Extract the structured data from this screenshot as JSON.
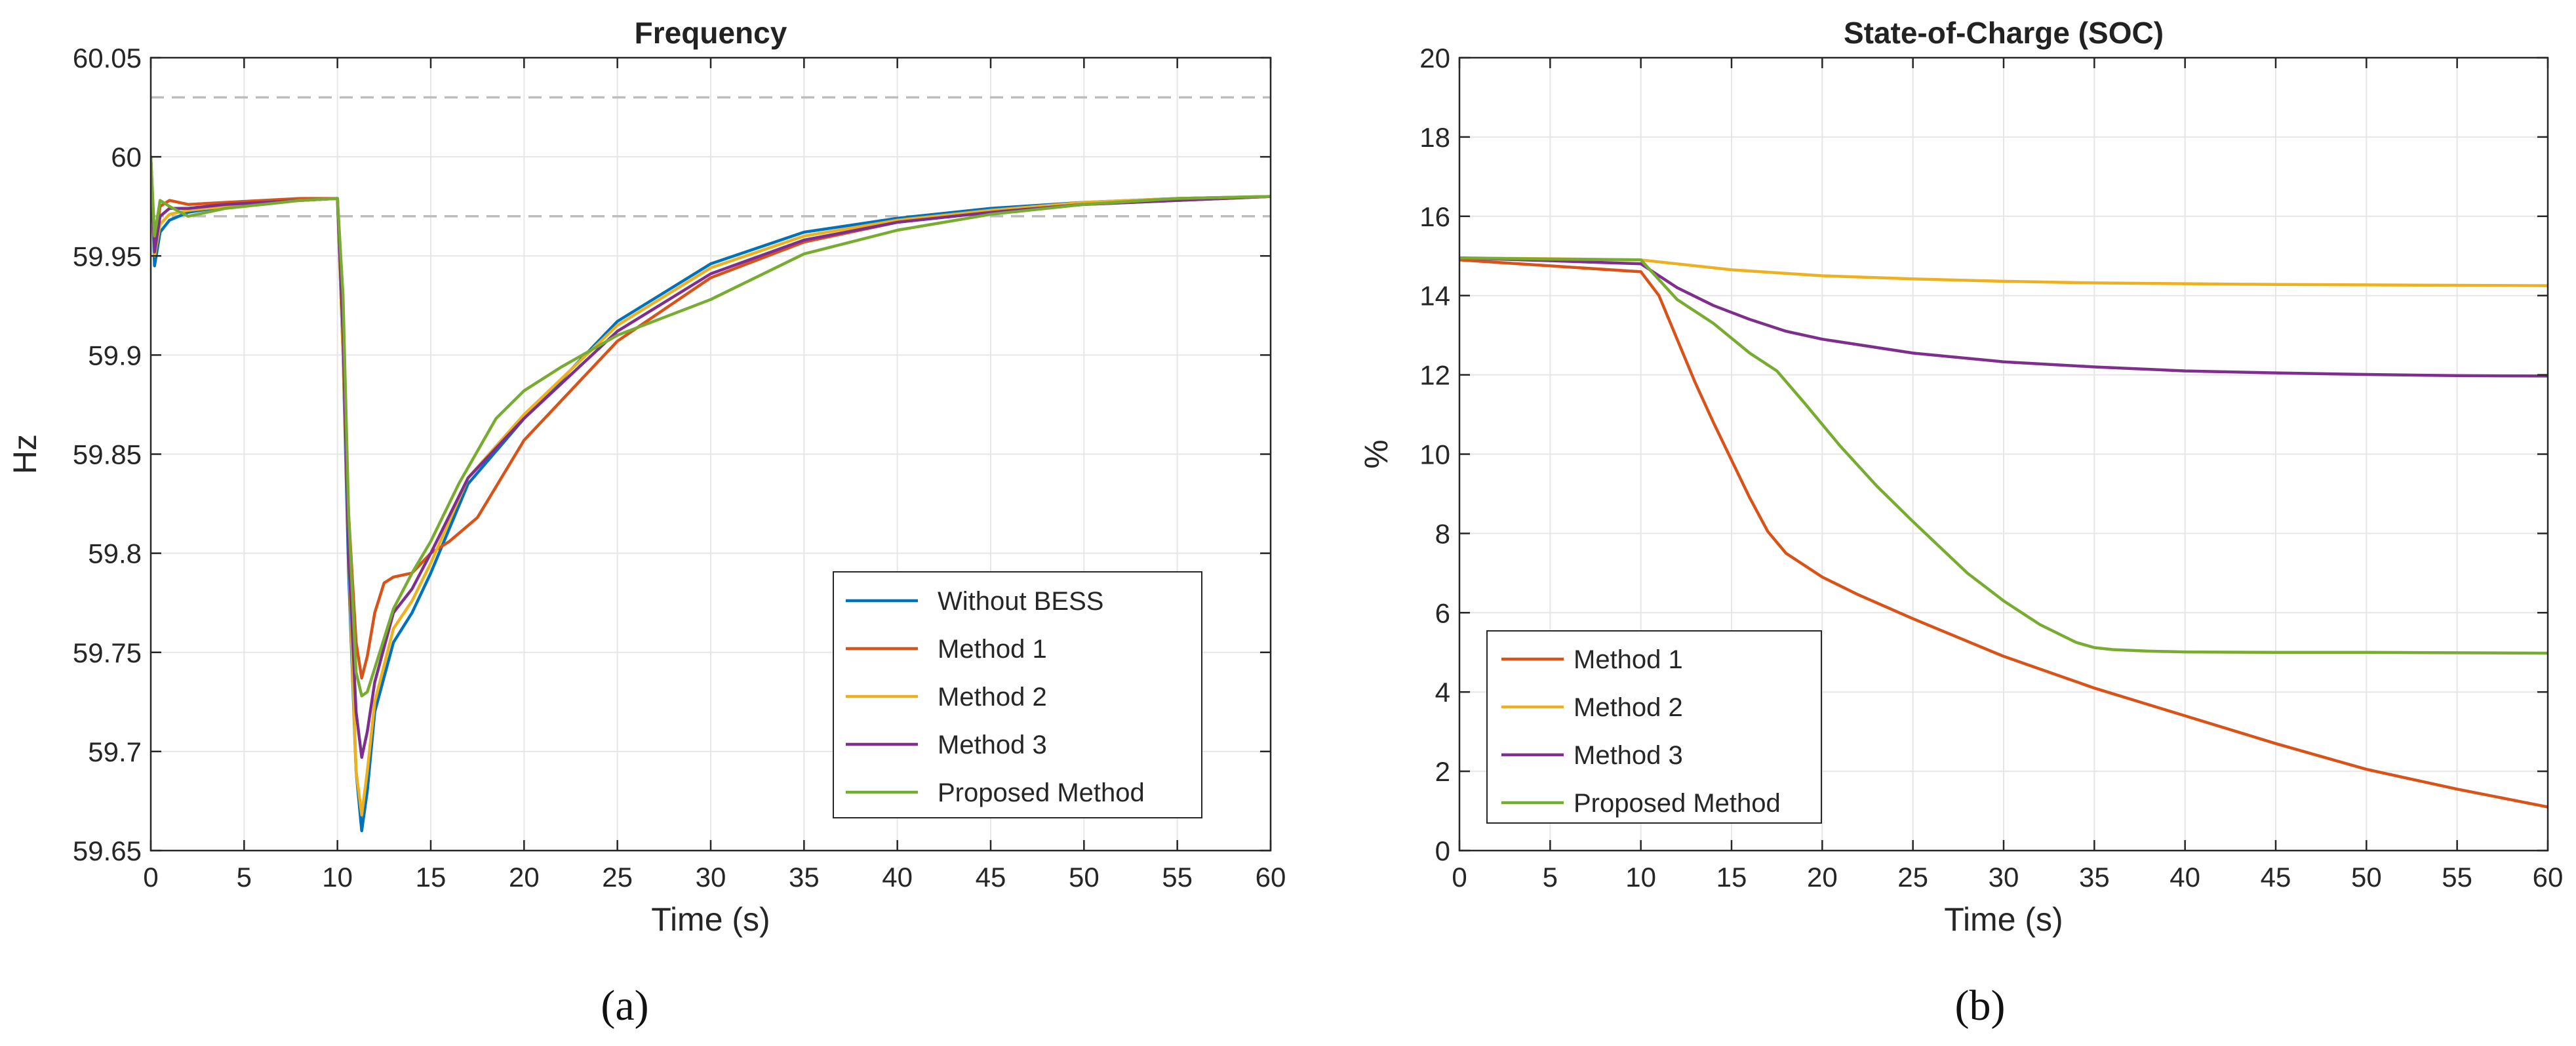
{
  "chart_data": [
    {
      "type": "line",
      "title": "Frequency",
      "xlabel": "Time (s)",
      "ylabel": "Hz",
      "xlim": [
        0,
        60
      ],
      "ylim": [
        59.65,
        60.05
      ],
      "xticks": [
        0,
        5,
        10,
        15,
        20,
        25,
        30,
        35,
        40,
        45,
        50,
        55,
        60
      ],
      "yticks": [
        59.65,
        59.7,
        59.75,
        59.8,
        59.85,
        59.9,
        59.95,
        60,
        60.05
      ],
      "xtick_labels": [
        "0",
        "5",
        "10",
        "15",
        "20",
        "25",
        "30",
        "35",
        "40",
        "45",
        "50",
        "55",
        "60"
      ],
      "ytick_labels": [
        "59.65",
        "59.7",
        "59.75",
        "59.8",
        "59.85",
        "59.9",
        "59.95",
        "60",
        "60.05"
      ],
      "grid": true,
      "legend_position": "bottom-right",
      "caption": "(a)",
      "reference_lines": [
        {
          "y": 60.03,
          "style": "dashed",
          "color": "#bdbdbd"
        },
        {
          "y": 59.97,
          "style": "dashed",
          "color": "#bdbdbd"
        }
      ],
      "series": [
        {
          "name": "Without BESS",
          "color": "#0072BD",
          "x": [
            0,
            0.2,
            0.5,
            1,
            2,
            4,
            6,
            8,
            10,
            10.3,
            10.6,
            11,
            11.3,
            11.6,
            12,
            13,
            14,
            15,
            17,
            20,
            25,
            30,
            35,
            40,
            45,
            50,
            55,
            60
          ],
          "y": [
            60.0,
            59.945,
            59.962,
            59.968,
            59.972,
            59.975,
            59.977,
            59.978,
            59.979,
            59.9,
            59.79,
            59.69,
            59.66,
            59.68,
            59.72,
            59.755,
            59.77,
            59.79,
            59.835,
            59.868,
            59.917,
            59.946,
            59.962,
            59.969,
            59.974,
            59.977,
            59.979,
            59.98
          ]
        },
        {
          "name": "Method 1",
          "color": "#D95319",
          "x": [
            0,
            0.2,
            0.5,
            1,
            2,
            4,
            6,
            8,
            10,
            10.3,
            10.6,
            11,
            11.3,
            11.6,
            12,
            12.5,
            13,
            14,
            15,
            16,
            17.5,
            20,
            25,
            30,
            35,
            40,
            45,
            50,
            55,
            60
          ],
          "y": [
            60.0,
            59.955,
            59.975,
            59.978,
            59.976,
            59.977,
            59.978,
            59.979,
            59.979,
            59.91,
            59.82,
            59.755,
            59.737,
            59.748,
            59.77,
            59.785,
            59.788,
            59.79,
            59.8,
            59.806,
            59.818,
            59.857,
            59.907,
            59.939,
            59.957,
            59.967,
            59.972,
            59.976,
            59.978,
            59.98
          ]
        },
        {
          "name": "Method 2",
          "color": "#EDB120",
          "x": [
            0,
            0.2,
            0.5,
            1,
            2,
            4,
            6,
            8,
            10,
            10.3,
            10.6,
            11,
            11.3,
            11.6,
            12,
            13,
            14,
            15,
            17,
            20,
            25,
            30,
            35,
            40,
            45,
            50,
            55,
            60
          ],
          "y": [
            60.0,
            59.95,
            59.966,
            59.971,
            59.973,
            59.975,
            59.977,
            59.978,
            59.979,
            59.9,
            59.8,
            59.69,
            59.668,
            59.69,
            59.725,
            59.762,
            59.776,
            59.795,
            59.838,
            59.87,
            59.915,
            59.944,
            59.96,
            59.968,
            59.973,
            59.977,
            59.979,
            59.98
          ]
        },
        {
          "name": "Method 3",
          "color": "#7E2F8E",
          "x": [
            0,
            0.2,
            0.5,
            1,
            2,
            4,
            6,
            8,
            10,
            10.3,
            10.6,
            11,
            11.3,
            11.6,
            12,
            13,
            14,
            15,
            17,
            20,
            25,
            30,
            35,
            40,
            45,
            50,
            55,
            60
          ],
          "y": [
            60.0,
            59.952,
            59.97,
            59.974,
            59.974,
            59.976,
            59.977,
            59.978,
            59.979,
            59.91,
            59.8,
            59.72,
            59.697,
            59.71,
            59.735,
            59.77,
            59.782,
            59.8,
            59.838,
            59.868,
            59.912,
            59.941,
            59.958,
            59.967,
            59.972,
            59.976,
            59.978,
            59.98
          ]
        },
        {
          "name": "Proposed Method",
          "color": "#77AC30",
          "x": [
            0,
            0.2,
            0.5,
            1,
            2,
            3,
            4,
            6,
            8,
            10,
            10.3,
            10.6,
            11,
            11.3,
            11.6,
            12,
            13,
            14,
            15,
            16.5,
            18.5,
            20,
            22,
            25,
            30,
            35,
            40,
            45,
            50,
            55,
            60
          ],
          "y": [
            60.0,
            59.96,
            59.978,
            59.975,
            59.97,
            59.972,
            59.974,
            59.976,
            59.978,
            59.979,
            59.93,
            59.82,
            59.74,
            59.728,
            59.73,
            59.742,
            59.772,
            59.79,
            59.806,
            59.835,
            59.868,
            59.882,
            59.894,
            59.91,
            59.928,
            59.951,
            59.963,
            59.971,
            59.976,
            59.979,
            59.98
          ]
        }
      ]
    },
    {
      "type": "line",
      "title": "State-of-Charge (SOC)",
      "xlabel": "Time (s)",
      "ylabel": "%",
      "xlim": [
        0,
        60
      ],
      "ylim": [
        0,
        20
      ],
      "xticks": [
        0,
        5,
        10,
        15,
        20,
        25,
        30,
        35,
        40,
        45,
        50,
        55,
        60
      ],
      "yticks": [
        0,
        2,
        4,
        6,
        8,
        10,
        12,
        14,
        16,
        18,
        20
      ],
      "xtick_labels": [
        "0",
        "5",
        "10",
        "15",
        "20",
        "25",
        "30",
        "35",
        "40",
        "45",
        "50",
        "55",
        "60"
      ],
      "ytick_labels": [
        "0",
        "2",
        "4",
        "6",
        "8",
        "10",
        "12",
        "14",
        "16",
        "18",
        "20"
      ],
      "grid": true,
      "legend_position": "bottom-left",
      "caption": "(b)",
      "series": [
        {
          "name": "Method 1",
          "color": "#D95319",
          "x": [
            0,
            5,
            10,
            11,
            12,
            13,
            14,
            15,
            16,
            17,
            18,
            19,
            20,
            22,
            25,
            30,
            35,
            40,
            45,
            50,
            55,
            60
          ],
          "y": [
            14.9,
            14.75,
            14.6,
            14.0,
            12.9,
            11.8,
            10.8,
            9.85,
            8.9,
            8.05,
            7.5,
            7.2,
            6.9,
            6.45,
            5.85,
            4.9,
            4.1,
            3.4,
            2.7,
            2.05,
            1.55,
            1.1
          ]
        },
        {
          "name": "Method 2",
          "color": "#EDB120",
          "x": [
            0,
            5,
            10,
            12,
            15,
            20,
            25,
            30,
            35,
            40,
            45,
            50,
            55,
            60
          ],
          "y": [
            14.95,
            14.93,
            14.9,
            14.8,
            14.65,
            14.5,
            14.42,
            14.36,
            14.32,
            14.3,
            14.28,
            14.27,
            14.26,
            14.25
          ]
        },
        {
          "name": "Method 3",
          "color": "#7E2F8E",
          "x": [
            0,
            5,
            10,
            11,
            12,
            14,
            16,
            18,
            20,
            25,
            30,
            35,
            40,
            45,
            50,
            55,
            60
          ],
          "y": [
            14.95,
            14.88,
            14.8,
            14.5,
            14.2,
            13.75,
            13.4,
            13.1,
            12.9,
            12.55,
            12.33,
            12.2,
            12.1,
            12.05,
            12.01,
            11.98,
            11.97
          ]
        },
        {
          "name": "Proposed Method",
          "color": "#77AC30",
          "x": [
            0,
            5,
            10,
            11,
            12,
            14,
            16,
            17.5,
            19,
            21,
            23,
            25,
            28,
            30,
            32,
            34,
            35,
            36,
            38,
            40,
            45,
            50,
            55,
            60
          ],
          "y": [
            14.95,
            14.92,
            14.9,
            14.4,
            13.9,
            13.3,
            12.55,
            12.1,
            11.3,
            10.2,
            9.2,
            8.3,
            7.0,
            6.3,
            5.7,
            5.25,
            5.12,
            5.07,
            5.03,
            5.01,
            5.0,
            5.0,
            4.99,
            4.98
          ]
        }
      ]
    }
  ]
}
